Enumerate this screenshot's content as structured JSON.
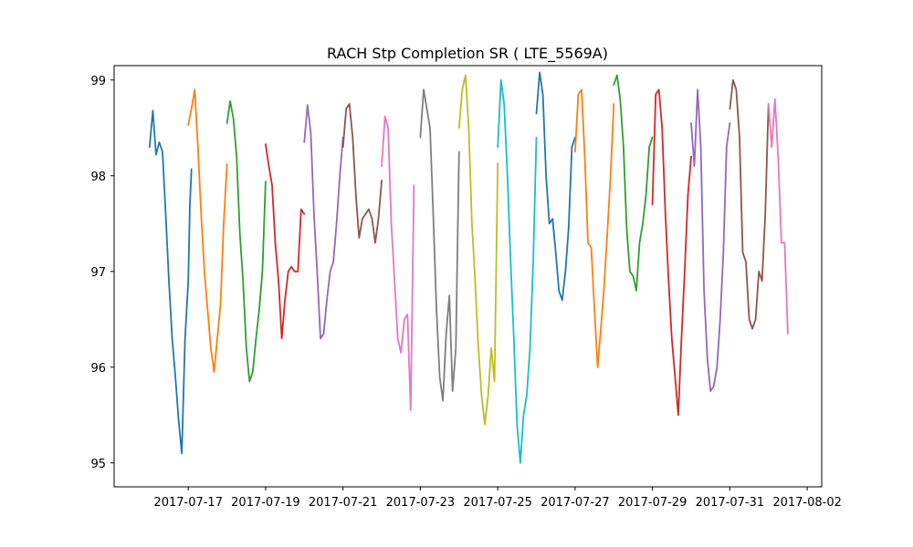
{
  "chart_data": {
    "type": "line",
    "title": "RACH Stp Completion SR ( LTE_5569A)",
    "xlabel": "",
    "ylabel": "",
    "xlim": [
      "2017-07-15T02:00",
      "2017-08-02T09:00"
    ],
    "ylim": [
      94.75,
      99.15
    ],
    "x_ticks": [
      "2017-07-17",
      "2017-07-19",
      "2017-07-21",
      "2017-07-23",
      "2017-07-25",
      "2017-07-27",
      "2017-07-29",
      "2017-07-31",
      "2017-08-02"
    ],
    "y_ticks": [
      95,
      96,
      97,
      98,
      99
    ],
    "grid": false,
    "legend": "none",
    "series": [
      {
        "color": "#1f77b4",
        "points": [
          [
            "2017-07-16T00:00",
            98.3
          ],
          [
            "2017-07-16T02:00",
            98.68
          ],
          [
            "2017-07-16T04:00",
            98.22
          ],
          [
            "2017-07-16T06:00",
            98.35
          ],
          [
            "2017-07-16T08:00",
            98.25
          ],
          [
            "2017-07-16T10:00",
            97.6
          ],
          [
            "2017-07-16T12:00",
            96.9
          ],
          [
            "2017-07-16T14:00",
            96.3
          ],
          [
            "2017-07-16T16:00",
            95.9
          ],
          [
            "2017-07-16T18:00",
            95.45
          ],
          [
            "2017-07-16T20:00",
            95.1
          ],
          [
            "2017-07-16T22:00",
            96.3
          ],
          [
            "2017-07-17T00:00",
            96.9
          ],
          [
            "2017-07-17T01:00",
            97.7
          ],
          [
            "2017-07-17T02:00",
            98.07
          ]
        ]
      },
      {
        "color": "#ff7f0e",
        "points": [
          [
            "2017-07-17T00:00",
            98.53
          ],
          [
            "2017-07-17T02:00",
            98.7
          ],
          [
            "2017-07-17T04:00",
            98.9
          ],
          [
            "2017-07-17T06:00",
            98.3
          ],
          [
            "2017-07-17T08:00",
            97.6
          ],
          [
            "2017-07-17T10:00",
            97.0
          ],
          [
            "2017-07-17T12:00",
            96.6
          ],
          [
            "2017-07-17T14:00",
            96.2
          ],
          [
            "2017-07-17T16:00",
            95.95
          ],
          [
            "2017-07-17T18:00",
            96.3
          ],
          [
            "2017-07-17T20:00",
            96.65
          ],
          [
            "2017-07-17T22:00",
            97.5
          ],
          [
            "2017-07-18T00:00",
            98.12
          ]
        ]
      },
      {
        "color": "#2ca02c",
        "points": [
          [
            "2017-07-18T00:00",
            98.55
          ],
          [
            "2017-07-18T02:00",
            98.78
          ],
          [
            "2017-07-18T04:00",
            98.6
          ],
          [
            "2017-07-18T06:00",
            98.2
          ],
          [
            "2017-07-18T08:00",
            97.4
          ],
          [
            "2017-07-18T10:00",
            96.9
          ],
          [
            "2017-07-18T12:00",
            96.2
          ],
          [
            "2017-07-18T14:00",
            95.85
          ],
          [
            "2017-07-18T16:00",
            95.95
          ],
          [
            "2017-07-18T18:00",
            96.3
          ],
          [
            "2017-07-18T20:00",
            96.6
          ],
          [
            "2017-07-18T22:00",
            97.0
          ],
          [
            "2017-07-19T00:00",
            97.94
          ]
        ]
      },
      {
        "color": "#d62728",
        "points": [
          [
            "2017-07-19T00:00",
            98.33
          ],
          [
            "2017-07-19T02:00",
            98.1
          ],
          [
            "2017-07-19T04:00",
            97.9
          ],
          [
            "2017-07-19T06:00",
            97.3
          ],
          [
            "2017-07-19T08:00",
            96.9
          ],
          [
            "2017-07-19T10:00",
            96.3
          ],
          [
            "2017-07-19T12:00",
            96.7
          ],
          [
            "2017-07-19T14:00",
            97.0
          ],
          [
            "2017-07-19T16:00",
            97.05
          ],
          [
            "2017-07-19T18:00",
            97.0
          ],
          [
            "2017-07-19T20:00",
            97.0
          ],
          [
            "2017-07-19T22:00",
            97.65
          ],
          [
            "2017-07-20T00:00",
            97.6
          ]
        ]
      },
      {
        "color": "#9467bd",
        "points": [
          [
            "2017-07-20T00:00",
            98.35
          ],
          [
            "2017-07-20T02:00",
            98.74
          ],
          [
            "2017-07-20T04:00",
            98.45
          ],
          [
            "2017-07-20T06:00",
            97.6
          ],
          [
            "2017-07-20T08:00",
            97.0
          ],
          [
            "2017-07-20T10:00",
            96.3
          ],
          [
            "2017-07-20T12:00",
            96.35
          ],
          [
            "2017-07-20T14:00",
            96.7
          ],
          [
            "2017-07-20T16:00",
            97.0
          ],
          [
            "2017-07-20T18:00",
            97.1
          ],
          [
            "2017-07-20T20:00",
            97.5
          ],
          [
            "2017-07-20T22:00",
            98.0
          ],
          [
            "2017-07-21T00:00",
            98.4
          ]
        ]
      },
      {
        "color": "#8c564b",
        "points": [
          [
            "2017-07-21T00:00",
            98.3
          ],
          [
            "2017-07-21T02:00",
            98.7
          ],
          [
            "2017-07-21T04:00",
            98.75
          ],
          [
            "2017-07-21T06:00",
            98.4
          ],
          [
            "2017-07-21T08:00",
            97.8
          ],
          [
            "2017-07-21T10:00",
            97.35
          ],
          [
            "2017-07-21T12:00",
            97.55
          ],
          [
            "2017-07-21T14:00",
            97.6
          ],
          [
            "2017-07-21T16:00",
            97.65
          ],
          [
            "2017-07-21T18:00",
            97.55
          ],
          [
            "2017-07-21T20:00",
            97.3
          ],
          [
            "2017-07-21T22:00",
            97.55
          ],
          [
            "2017-07-22T00:00",
            97.95
          ]
        ]
      },
      {
        "color": "#e377c2",
        "points": [
          [
            "2017-07-22T00:00",
            98.1
          ],
          [
            "2017-07-22T02:00",
            98.62
          ],
          [
            "2017-07-22T04:00",
            98.5
          ],
          [
            "2017-07-22T06:00",
            97.5
          ],
          [
            "2017-07-22T08:00",
            96.9
          ],
          [
            "2017-07-22T10:00",
            96.3
          ],
          [
            "2017-07-22T12:00",
            96.15
          ],
          [
            "2017-07-22T14:00",
            96.5
          ],
          [
            "2017-07-22T16:00",
            96.55
          ],
          [
            "2017-07-22T18:00",
            95.55
          ],
          [
            "2017-07-22T20:00",
            97.9
          ]
        ]
      },
      {
        "color": "#7f7f7f",
        "points": [
          [
            "2017-07-23T00:00",
            98.4
          ],
          [
            "2017-07-23T02:00",
            98.9
          ],
          [
            "2017-07-23T04:00",
            98.7
          ],
          [
            "2017-07-23T06:00",
            98.5
          ],
          [
            "2017-07-23T08:00",
            97.6
          ],
          [
            "2017-07-23T10:00",
            96.6
          ],
          [
            "2017-07-23T12:00",
            95.9
          ],
          [
            "2017-07-23T14:00",
            95.65
          ],
          [
            "2017-07-23T16:00",
            96.35
          ],
          [
            "2017-07-23T18:00",
            96.75
          ],
          [
            "2017-07-23T20:00",
            95.75
          ],
          [
            "2017-07-23T22:00",
            96.2
          ],
          [
            "2017-07-24T00:00",
            98.25
          ]
        ]
      },
      {
        "color": "#bcbd22",
        "points": [
          [
            "2017-07-24T00:00",
            98.5
          ],
          [
            "2017-07-24T02:00",
            98.9
          ],
          [
            "2017-07-24T04:00",
            99.05
          ],
          [
            "2017-07-24T06:00",
            98.5
          ],
          [
            "2017-07-24T08:00",
            97.5
          ],
          [
            "2017-07-24T10:00",
            96.9
          ],
          [
            "2017-07-24T12:00",
            96.2
          ],
          [
            "2017-07-24T14:00",
            95.7
          ],
          [
            "2017-07-24T16:00",
            95.4
          ],
          [
            "2017-07-24T18:00",
            95.7
          ],
          [
            "2017-07-24T20:00",
            96.2
          ],
          [
            "2017-07-24T22:00",
            95.85
          ],
          [
            "2017-07-25T00:00",
            98.13
          ]
        ]
      },
      {
        "color": "#17becf",
        "points": [
          [
            "2017-07-25T00:00",
            98.3
          ],
          [
            "2017-07-25T02:00",
            99.0
          ],
          [
            "2017-07-25T04:00",
            98.75
          ],
          [
            "2017-07-25T06:00",
            98.0
          ],
          [
            "2017-07-25T08:00",
            97.1
          ],
          [
            "2017-07-25T10:00",
            96.3
          ],
          [
            "2017-07-25T12:00",
            95.4
          ],
          [
            "2017-07-25T14:00",
            95.0
          ],
          [
            "2017-07-25T16:00",
            95.5
          ],
          [
            "2017-07-25T18:00",
            95.7
          ],
          [
            "2017-07-25T20:00",
            96.2
          ],
          [
            "2017-07-25T22:00",
            97.1
          ],
          [
            "2017-07-26T00:00",
            98.4
          ]
        ]
      },
      {
        "color": "#1f77b4",
        "points": [
          [
            "2017-07-26T00:00",
            98.65
          ],
          [
            "2017-07-26T02:00",
            99.08
          ],
          [
            "2017-07-26T04:00",
            98.85
          ],
          [
            "2017-07-26T06:00",
            98.0
          ],
          [
            "2017-07-26T08:00",
            97.5
          ],
          [
            "2017-07-26T10:00",
            97.55
          ],
          [
            "2017-07-26T12:00",
            97.2
          ],
          [
            "2017-07-26T14:00",
            96.8
          ],
          [
            "2017-07-26T16:00",
            96.7
          ],
          [
            "2017-07-26T18:00",
            97.0
          ],
          [
            "2017-07-26T20:00",
            97.45
          ],
          [
            "2017-07-26T22:00",
            98.3
          ],
          [
            "2017-07-27T00:00",
            98.4
          ]
        ]
      },
      {
        "color": "#ff7f0e",
        "points": [
          [
            "2017-07-27T00:00",
            98.25
          ],
          [
            "2017-07-27T02:00",
            98.85
          ],
          [
            "2017-07-27T04:00",
            98.9
          ],
          [
            "2017-07-27T06:00",
            98.2
          ],
          [
            "2017-07-27T08:00",
            97.3
          ],
          [
            "2017-07-27T10:00",
            97.25
          ],
          [
            "2017-07-27T12:00",
            96.6
          ],
          [
            "2017-07-27T14:00",
            96.0
          ],
          [
            "2017-07-27T16:00",
            96.4
          ],
          [
            "2017-07-27T18:00",
            96.85
          ],
          [
            "2017-07-27T20:00",
            97.4
          ],
          [
            "2017-07-27T22:00",
            98.0
          ],
          [
            "2017-07-28T00:00",
            98.75
          ]
        ]
      },
      {
        "color": "#2ca02c",
        "points": [
          [
            "2017-07-28T00:00",
            98.95
          ],
          [
            "2017-07-28T02:00",
            99.05
          ],
          [
            "2017-07-28T04:00",
            98.8
          ],
          [
            "2017-07-28T06:00",
            98.3
          ],
          [
            "2017-07-28T08:00",
            97.45
          ],
          [
            "2017-07-28T10:00",
            97.0
          ],
          [
            "2017-07-28T12:00",
            96.95
          ],
          [
            "2017-07-28T14:00",
            96.8
          ],
          [
            "2017-07-28T16:00",
            97.3
          ],
          [
            "2017-07-28T18:00",
            97.5
          ],
          [
            "2017-07-28T20:00",
            97.8
          ],
          [
            "2017-07-28T22:00",
            98.3
          ],
          [
            "2017-07-29T00:00",
            98.4
          ]
        ]
      },
      {
        "color": "#d62728",
        "points": [
          [
            "2017-07-29T00:00",
            97.7
          ],
          [
            "2017-07-29T02:00",
            98.85
          ],
          [
            "2017-07-29T04:00",
            98.9
          ],
          [
            "2017-07-29T06:00",
            98.5
          ],
          [
            "2017-07-29T08:00",
            97.6
          ],
          [
            "2017-07-29T10:00",
            96.9
          ],
          [
            "2017-07-29T12:00",
            96.3
          ],
          [
            "2017-07-29T14:00",
            95.9
          ],
          [
            "2017-07-29T16:00",
            95.5
          ],
          [
            "2017-07-29T18:00",
            96.3
          ],
          [
            "2017-07-29T20:00",
            97.0
          ],
          [
            "2017-07-29T22:00",
            97.8
          ],
          [
            "2017-07-30T00:00",
            98.2
          ]
        ]
      },
      {
        "color": "#9467bd",
        "points": [
          [
            "2017-07-30T00:00",
            98.55
          ],
          [
            "2017-07-30T02:00",
            98.1
          ],
          [
            "2017-07-30T04:00",
            98.9
          ],
          [
            "2017-07-30T06:00",
            98.3
          ],
          [
            "2017-07-30T08:00",
            96.8
          ],
          [
            "2017-07-30T10:00",
            96.1
          ],
          [
            "2017-07-30T12:00",
            95.75
          ],
          [
            "2017-07-30T14:00",
            95.8
          ],
          [
            "2017-07-30T16:00",
            96.0
          ],
          [
            "2017-07-30T18:00",
            96.5
          ],
          [
            "2017-07-30T20:00",
            97.2
          ],
          [
            "2017-07-30T22:00",
            98.3
          ],
          [
            "2017-07-31T00:00",
            98.55
          ]
        ]
      },
      {
        "color": "#8c564b",
        "points": [
          [
            "2017-07-31T00:00",
            98.7
          ],
          [
            "2017-07-31T02:00",
            99.0
          ],
          [
            "2017-07-31T04:00",
            98.9
          ],
          [
            "2017-07-31T06:00",
            98.4
          ],
          [
            "2017-07-31T08:00",
            97.2
          ],
          [
            "2017-07-31T10:00",
            97.1
          ],
          [
            "2017-07-31T12:00",
            96.5
          ],
          [
            "2017-07-31T14:00",
            96.4
          ],
          [
            "2017-07-31T16:00",
            96.5
          ],
          [
            "2017-07-31T18:00",
            97.0
          ],
          [
            "2017-07-31T20:00",
            96.9
          ],
          [
            "2017-07-31T22:00",
            97.6
          ],
          [
            "2017-08-01T00:00",
            98.75
          ]
        ]
      },
      {
        "color": "#e377c2",
        "points": [
          [
            "2017-08-01T00:00",
            98.75
          ],
          [
            "2017-08-01T02:00",
            98.3
          ],
          [
            "2017-08-01T04:00",
            98.8
          ],
          [
            "2017-08-01T06:00",
            98.2
          ],
          [
            "2017-08-01T08:00",
            97.3
          ],
          [
            "2017-08-01T10:00",
            97.3
          ],
          [
            "2017-08-01T12:00",
            96.35
          ]
        ]
      }
    ]
  }
}
